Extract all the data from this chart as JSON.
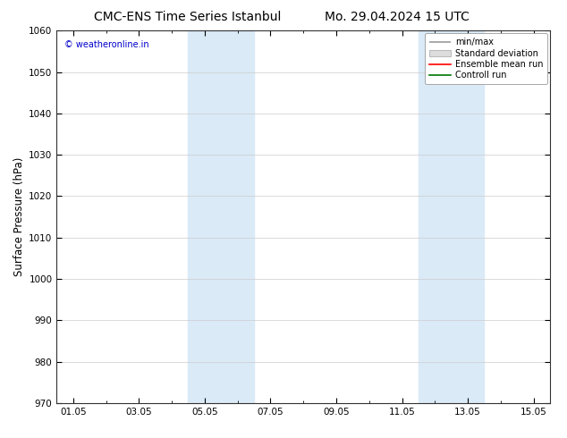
{
  "title": "CMC-ENS Time Series Istanbul",
  "title2": "Mo. 29.04.2024 15 UTC",
  "ylabel": "Surface Pressure (hPa)",
  "ylim": [
    970,
    1060
  ],
  "yticks": [
    970,
    980,
    990,
    1000,
    1010,
    1020,
    1030,
    1040,
    1050,
    1060
  ],
  "xtick_labels": [
    "01.05",
    "03.05",
    "05.05",
    "07.05",
    "09.05",
    "11.05",
    "13.05",
    "15.05"
  ],
  "xtick_positions": [
    0,
    2,
    4,
    6,
    8,
    10,
    12,
    14
  ],
  "xlim": [
    -0.5,
    14.5
  ],
  "shaded_bands": [
    {
      "x_start": 3.5,
      "x_end": 5.5
    },
    {
      "x_start": 10.5,
      "x_end": 12.5
    }
  ],
  "shaded_color": "#daeaf7",
  "watermark_text": "© weatheronline.in",
  "watermark_color": "#0000cc",
  "legend_labels": [
    "min/max",
    "Standard deviation",
    "Ensemble mean run",
    "Controll run"
  ],
  "legend_line_colors": [
    "#999999",
    "#bbbbbb",
    "#ff0000",
    "#007700"
  ],
  "legend_fill_colors": [
    "#ffffff",
    "#dddddd",
    "#ffffff",
    "#ffffff"
  ],
  "background_color": "#ffffff",
  "grid_color": "#cccccc",
  "title_fontsize": 10,
  "tick_fontsize": 7.5,
  "ylabel_fontsize": 8.5,
  "watermark_fontsize": 7,
  "legend_fontsize": 7
}
